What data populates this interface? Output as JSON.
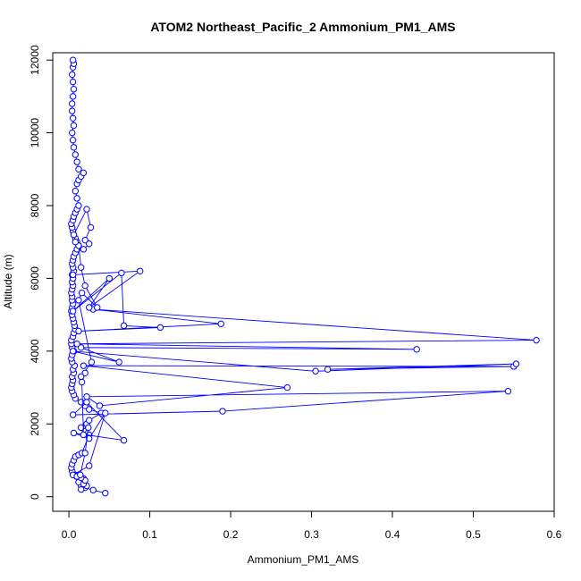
{
  "chart_data": {
    "type": "line",
    "title": "ATOM2 Northeast_Pacific_2 Ammonium_PM1_AMS",
    "xlabel": "Ammonium_PM1_AMS",
    "ylabel": "Altitude (m)",
    "xlim": [
      -0.02,
      0.6
    ],
    "ylim": [
      -400,
      12200
    ],
    "xticks": [
      0.0,
      0.1,
      0.2,
      0.3,
      0.4,
      0.5,
      0.6
    ],
    "xtick_labels": [
      "0.0",
      "0.1",
      "0.2",
      "0.3",
      "0.4",
      "0.5",
      "0.6"
    ],
    "yticks": [
      0,
      2000,
      4000,
      6000,
      8000,
      10000,
      12000
    ],
    "ytick_labels": [
      "0",
      "2000",
      "4000",
      "6000",
      "8000",
      "10000",
      "12000"
    ],
    "grid": false,
    "legend": "none",
    "series": [
      {
        "color": "#0000ff",
        "marker": "open-circle",
        "x": [
          0.045,
          0.03,
          0.02,
          0.015,
          0.012,
          0.018,
          0.01,
          0.008,
          0.005,
          0.004,
          0.003,
          0.004,
          0.006,
          0.008,
          0.012,
          0.016,
          0.025,
          0.02,
          0.015,
          0.022,
          0.025,
          0.04,
          0.025,
          0.02,
          0.015,
          0.008,
          0.006,
          0.004,
          0.003,
          0.004,
          0.005,
          0.004,
          0.006,
          0.005,
          0.007,
          0.004,
          0.003,
          0.004,
          0.006,
          0.004,
          0.003,
          0.003,
          0.005,
          0.006,
          0.008,
          0.007,
          0.006,
          0.005,
          0.004,
          0.003,
          0.004,
          0.005,
          0.004,
          0.004,
          0.003,
          0.004,
          0.005,
          0.004,
          0.005,
          0.004,
          0.006,
          0.005,
          0.004,
          0.005,
          0.006,
          0.008,
          0.01,
          0.012,
          0.01,
          0.008,
          0.006,
          0.005,
          0.004,
          0.003,
          0.005,
          0.006,
          0.008,
          0.01,
          0.012,
          0.01,
          0.008,
          0.01,
          0.012,
          0.015,
          0.018,
          0.012,
          0.01,
          0.008,
          0.006,
          0.005,
          0.004,
          0.006,
          0.005,
          0.004,
          0.004,
          0.005,
          0.006,
          0.005,
          0.004,
          0.005,
          0.006,
          0.005
        ],
        "y": [
          100,
          180,
          250,
          300,
          400,
          500,
          550,
          600,
          620,
          700,
          800,
          900,
          1000,
          1100,
          1150,
          1200,
          1700,
          1800,
          1900,
          2000,
          2100,
          2300,
          2400,
          2500,
          2600,
          2700,
          2800,
          2900,
          3000,
          3100,
          3200,
          3300,
          3400,
          3500,
          3600,
          3700,
          3800,
          3900,
          4000,
          4100,
          4200,
          4300,
          4400,
          4500,
          4600,
          4700,
          4800,
          4900,
          5000,
          5100,
          5200,
          5300,
          5400,
          5500,
          5600,
          5700,
          5800,
          5900,
          6000,
          6100,
          6200,
          6300,
          6400,
          6500,
          6600,
          6700,
          6800,
          6900,
          7000,
          7100,
          7200,
          7300,
          7400,
          7500,
          7600,
          7700,
          7800,
          7900,
          8000,
          8200,
          8400,
          8600,
          8700,
          8800,
          8900,
          9000,
          9200,
          9400,
          9600,
          9800,
          10000,
          10200,
          10400,
          10600,
          10800,
          11000,
          11200,
          11400,
          11600,
          11800,
          11900,
          12000
        ]
      },
      {
        "color": "#0000ff",
        "marker": "open-circle",
        "x": [
          0.005,
          0.025,
          0.045,
          0.025,
          0.006,
          0.068,
          0.022,
          0.005,
          0.19,
          0.543,
          0.022,
          0.038,
          0.27,
          0.018,
          0.55,
          0.32,
          0.553,
          0.305,
          0.005,
          0.062,
          0.015,
          0.43,
          0.01,
          0.578,
          0.03,
          0.188,
          0.012,
          0.113,
          0.068,
          0.065,
          0.005,
          0.05,
          0.025,
          0.088,
          0.005
        ],
        "y": [
          600,
          850,
          2300,
          1600,
          1750,
          1550,
          2600,
          2250,
          2350,
          2900,
          2750,
          2500,
          3000,
          3600,
          3580,
          3500,
          3650,
          3450,
          4000,
          3700,
          4100,
          4050,
          4200,
          4300,
          5150,
          4750,
          4550,
          4650,
          4700,
          6150,
          5100,
          6000,
          5200,
          6200,
          6100
        ]
      },
      {
        "color": "#0000ff",
        "marker": "open-circle",
        "x": [
          0.015,
          0.022,
          0.018,
          0.02,
          0.015,
          0.01,
          0.014,
          0.02,
          0.024,
          0.018,
          0.016,
          0.02,
          0.015,
          0.028,
          0.012,
          0.016,
          0.035,
          0.02,
          0.015,
          0.012,
          0.008,
          0.006,
          0.022,
          0.027,
          0.02,
          0.025,
          0.018
        ],
        "y": [
          200,
          300,
          350,
          450,
          520,
          560,
          600,
          1200,
          1900,
          1700,
          3150,
          3400,
          3300,
          3700,
          5400,
          5600,
          5200,
          5800,
          6300,
          6900,
          7000,
          7200,
          7900,
          7400,
          7050,
          6950,
          6800
        ]
      }
    ]
  }
}
